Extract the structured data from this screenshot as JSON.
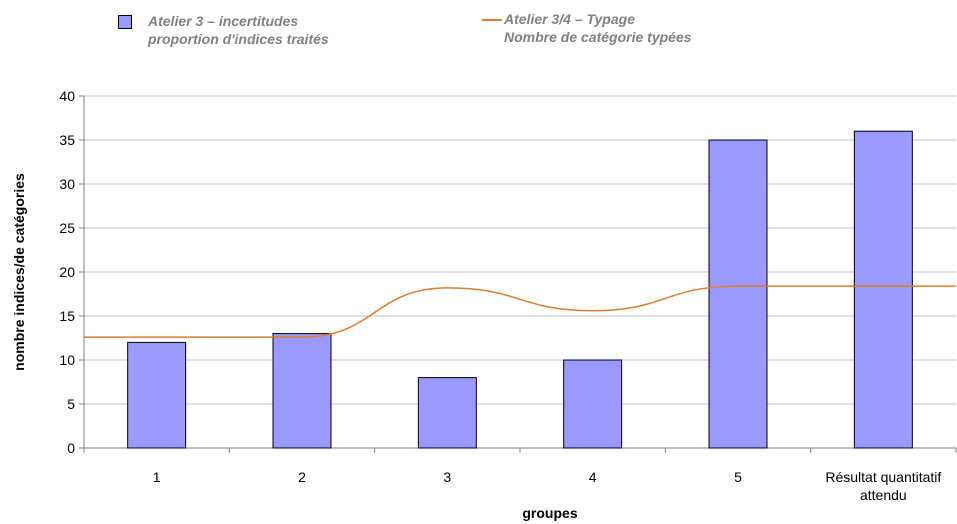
{
  "chart_data": {
    "type": "bar",
    "xlabel": "groupes",
    "ylabel": "nombre indices/de catégories",
    "ylim": [
      0,
      40
    ],
    "yticks": [
      0,
      5,
      10,
      15,
      20,
      25,
      30,
      35,
      40
    ],
    "grid": true,
    "legend_position": "top",
    "categories": [
      "1",
      "2",
      "3",
      "4",
      "5",
      "Résultat quantitatif attendu"
    ],
    "series": [
      {
        "kind": "bar",
        "legend_line1": "Atelier 3 – incertitudes",
        "legend_line2": "proportion d'indices traités",
        "color": "#9999ff",
        "values": [
          12,
          13,
          8,
          10,
          35,
          36
        ]
      },
      {
        "kind": "line",
        "legend_line1": "Atelier 3/4 – Typage",
        "legend_line2": "Nombre de catégorie typées",
        "color": "#e07b2a",
        "values": [
          12.6,
          12.6,
          18.2,
          15.6,
          18.4,
          18.4
        ]
      }
    ]
  }
}
